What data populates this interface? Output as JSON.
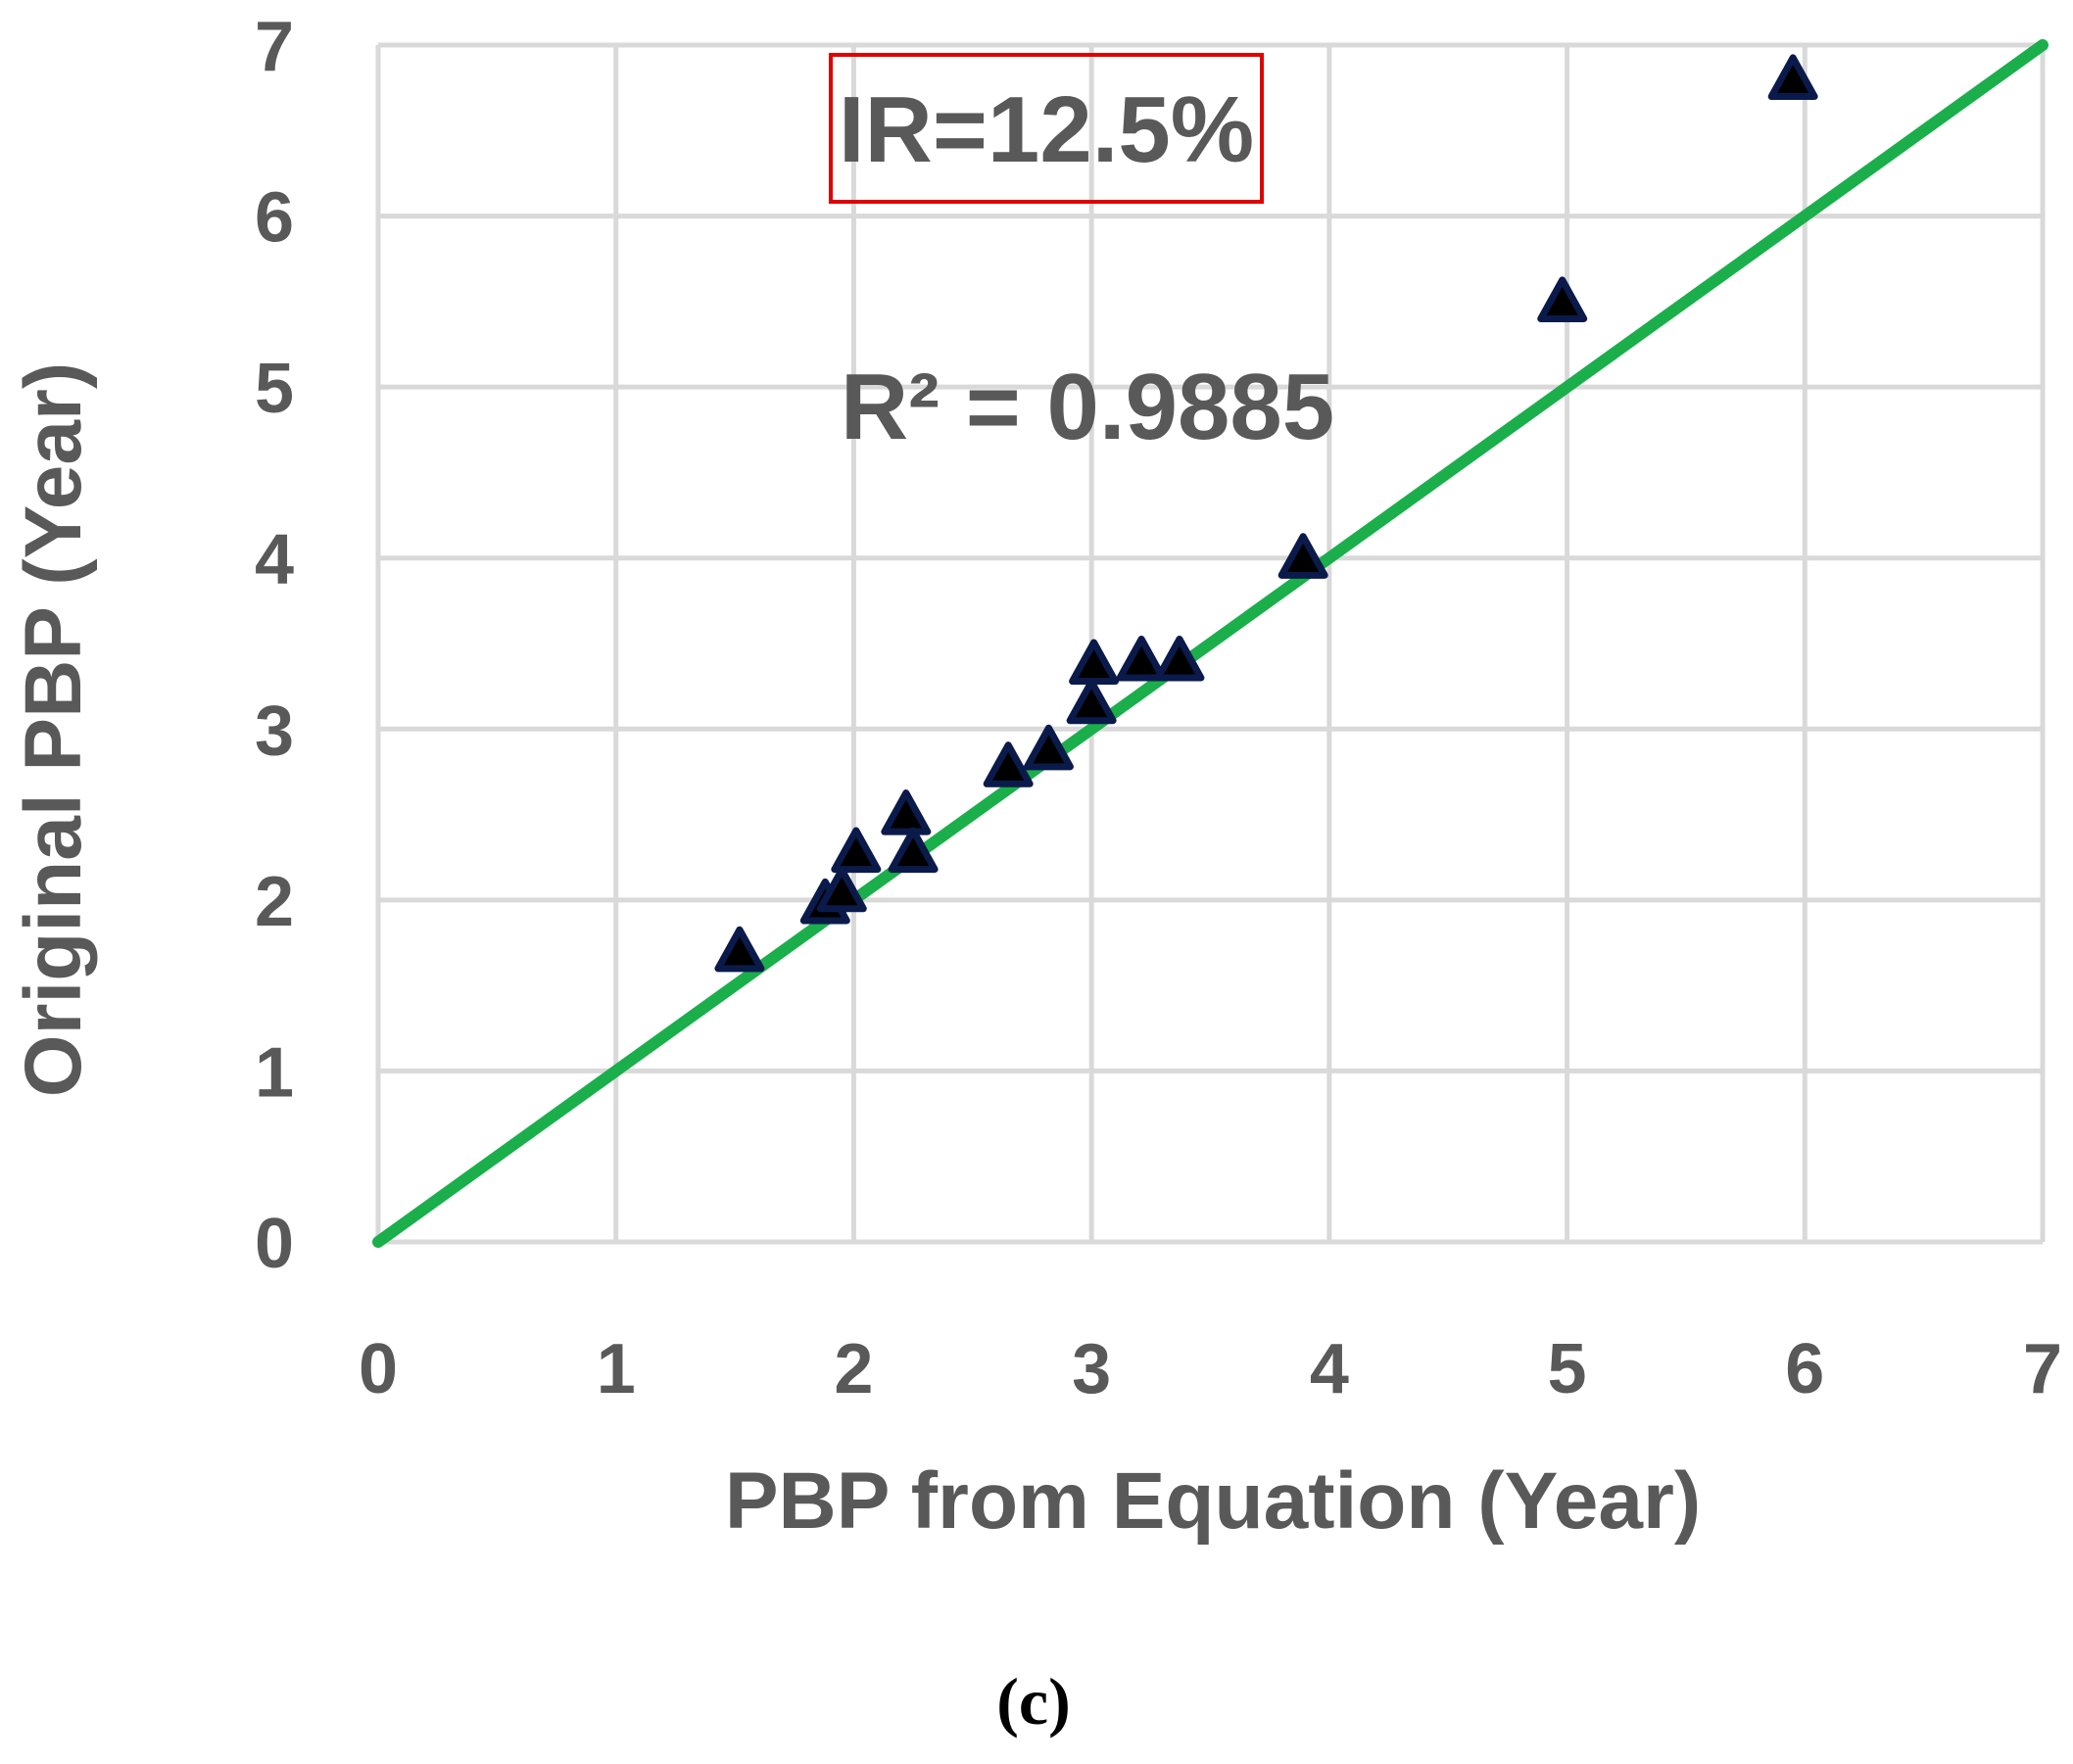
{
  "chart_data": {
    "type": "scatter",
    "xlabel": "PBP from Equation (Year)",
    "ylabel": "Original PBP (Year)",
    "xlim": [
      0,
      7
    ],
    "ylim": [
      0,
      7
    ],
    "x_ticks": [
      "0",
      "1",
      "2",
      "3",
      "4",
      "5",
      "6",
      "7"
    ],
    "y_ticks": [
      "0",
      "1",
      "2",
      "3",
      "4",
      "5",
      "6",
      "7"
    ],
    "grid": true,
    "series": [
      {
        "marker": "triangle",
        "color": "#0a1a4a",
        "points": [
          {
            "x": 1.52,
            "y": 1.7
          },
          {
            "x": 1.88,
            "y": 1.98
          },
          {
            "x": 1.95,
            "y": 2.05
          },
          {
            "x": 2.01,
            "y": 2.28
          },
          {
            "x": 2.22,
            "y": 2.5
          },
          {
            "x": 2.25,
            "y": 2.28
          },
          {
            "x": 2.65,
            "y": 2.78
          },
          {
            "x": 2.82,
            "y": 2.88
          },
          {
            "x": 3.01,
            "y": 3.38
          },
          {
            "x": 3.0,
            "y": 3.15
          },
          {
            "x": 3.21,
            "y": 3.4
          },
          {
            "x": 3.37,
            "y": 3.4
          },
          {
            "x": 3.89,
            "y": 4.0
          },
          {
            "x": 4.98,
            "y": 5.5
          },
          {
            "x": 5.95,
            "y": 6.8
          }
        ]
      }
    ],
    "reference_line": {
      "from": [
        0,
        0
      ],
      "to": [
        7,
        7
      ],
      "color": "#1aaf4b"
    },
    "annotations": {
      "ir_label": "IR=12.5%",
      "ir_box_color": "#e00000",
      "r2_text": "R² = 0.9885"
    },
    "panel_label": "(c)"
  }
}
